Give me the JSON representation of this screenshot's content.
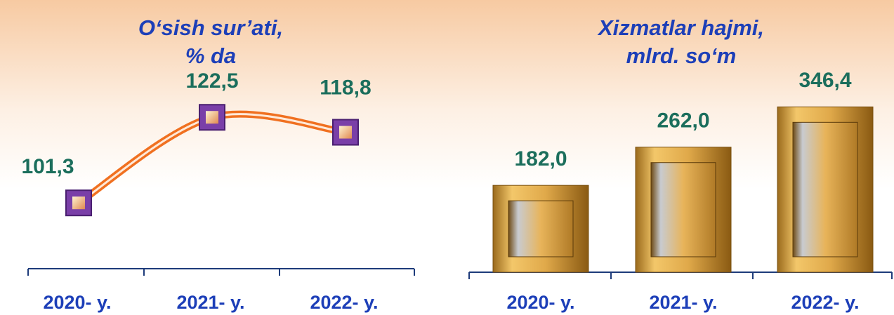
{
  "chart_data": [
    {
      "type": "line",
      "title": [
        "O‘sish sur’ati,",
        "% da"
      ],
      "categories": [
        "2020- y.",
        "2021- y.",
        "2022- y."
      ],
      "values": [
        101.3,
        122.5,
        118.8
      ],
      "value_labels": [
        "101,3",
        "122,5",
        "118,8"
      ],
      "color": "#f07020",
      "marker_color": "#7a3fa8",
      "ylim": [
        85,
        150
      ]
    },
    {
      "type": "bar",
      "title": [
        "Xizmatlar hajmi,",
        "mlrd. so‘m"
      ],
      "categories": [
        "2020- y.",
        "2021- y.",
        "2022- y."
      ],
      "values": [
        182.0,
        262.0,
        346.4
      ],
      "value_labels": [
        "182,0",
        "262,0",
        "346,4"
      ],
      "color": "#d9a441",
      "ylim": [
        0,
        560
      ]
    }
  ]
}
